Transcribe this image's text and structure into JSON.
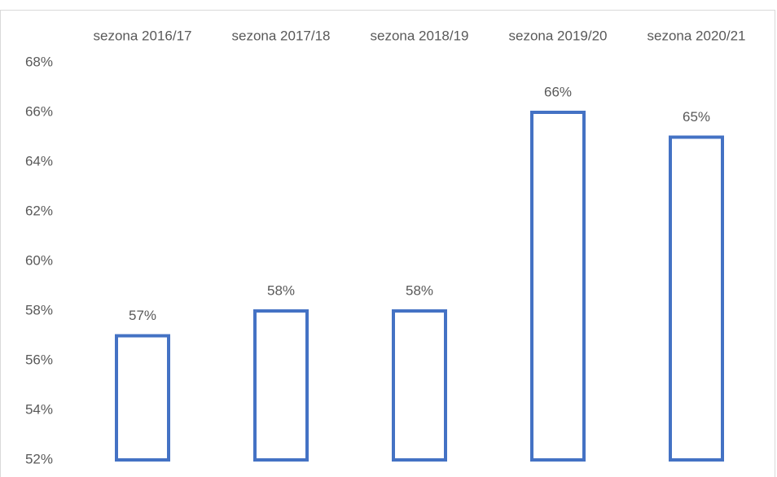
{
  "chart_data": {
    "type": "bar",
    "categories": [
      "sezona 2016/17",
      "sezona 2017/18",
      "sezona 2018/19",
      "sezona 2019/20",
      "sezona 2020/21"
    ],
    "values": [
      57,
      58,
      58,
      66,
      65
    ],
    "value_labels": [
      "57%",
      "58%",
      "58%",
      "66%",
      "65%"
    ],
    "color": "#4472c4",
    "ylim": [
      52,
      68
    ],
    "yticks": [
      {
        "value": 52,
        "label": "52%"
      },
      {
        "value": 54,
        "label": "54%"
      },
      {
        "value": 56,
        "label": "56%"
      },
      {
        "value": 58,
        "label": "58%"
      },
      {
        "value": 60,
        "label": "60%"
      },
      {
        "value": 62,
        "label": "62%"
      },
      {
        "value": 64,
        "label": "64%"
      },
      {
        "value": 66,
        "label": "66%"
      },
      {
        "value": 68,
        "label": "68%"
      }
    ],
    "grid": false
  }
}
